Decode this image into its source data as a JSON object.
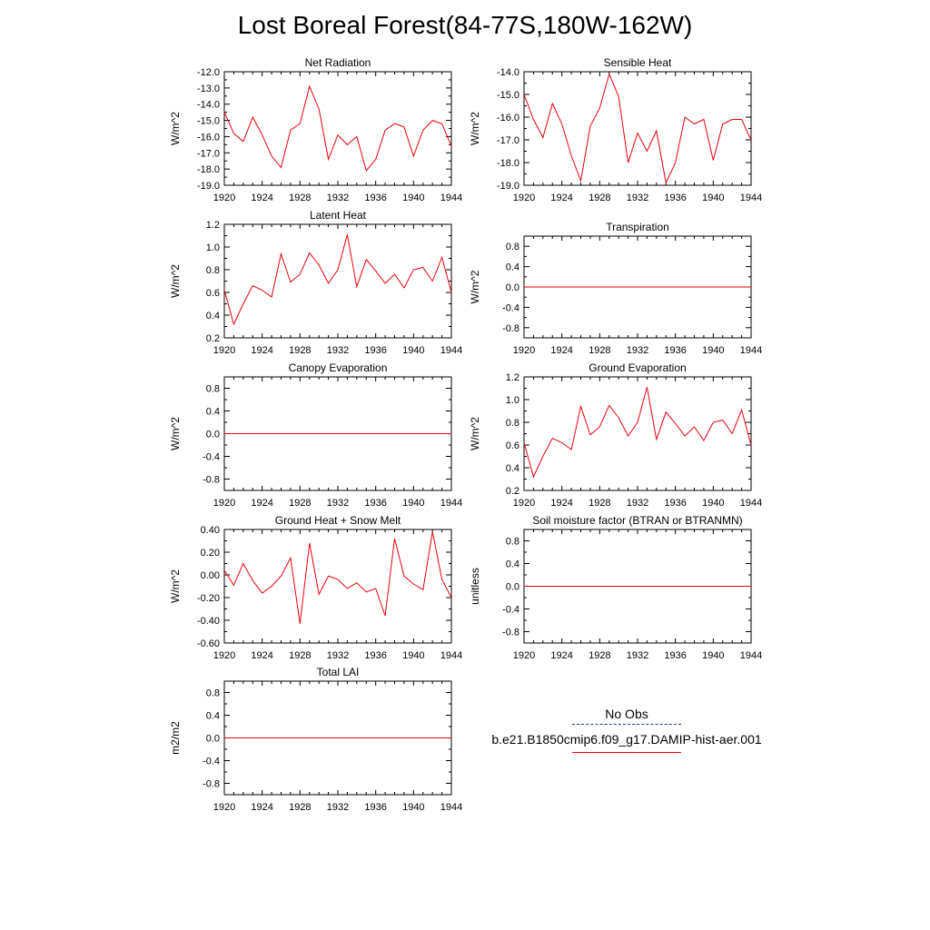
{
  "title": "Lost Boreal Forest(84-77S,180W-162W)",
  "legend": {
    "obs_label": "No Obs",
    "obs_color": "#1f2fb0",
    "run_label": "b.e21.B1850cmip6.f09_g17.DAMIP-hist-aer.001",
    "run_color": "#e8000b"
  },
  "chart_data": [
    {
      "type": "line",
      "title": "Net Radiation",
      "ylabel": "W/m^2",
      "xlim": [
        1920,
        1944
      ],
      "ylim": [
        -19.0,
        -12.0
      ],
      "xticks": [
        "1920",
        "1924",
        "1928",
        "1932",
        "1936",
        "1940",
        "1944"
      ],
      "yticks": [
        "-12.0",
        "-13.0",
        "-14.0",
        "-15.0",
        "-16.0",
        "-17.0",
        "-18.0",
        "-19.0"
      ],
      "x": [
        1920,
        1921,
        1922,
        1923,
        1924,
        1925,
        1926,
        1927,
        1928,
        1929,
        1930,
        1931,
        1932,
        1933,
        1934,
        1935,
        1936,
        1937,
        1938,
        1939,
        1940,
        1941,
        1942,
        1943,
        1944
      ],
      "values": [
        -14.5,
        -15.8,
        -16.3,
        -14.8,
        -15.9,
        -17.2,
        -17.9,
        -15.6,
        -15.2,
        -12.9,
        -14.3,
        -17.4,
        -15.9,
        -16.5,
        -16.0,
        -18.1,
        -17.4,
        -15.6,
        -15.2,
        -15.4,
        -17.2,
        -15.6,
        -15.0,
        -15.2,
        -16.6
      ]
    },
    {
      "type": "line",
      "title": "Sensible Heat",
      "ylabel": "W/m^2",
      "xlim": [
        1920,
        1944
      ],
      "ylim": [
        -19.0,
        -14.0
      ],
      "xticks": [
        "1920",
        "1924",
        "1928",
        "1932",
        "1936",
        "1940",
        "1944"
      ],
      "yticks": [
        "-14.0",
        "-15.0",
        "-16.0",
        "-17.0",
        "-18.0",
        "-19.0"
      ],
      "x": [
        1920,
        1921,
        1922,
        1923,
        1924,
        1925,
        1926,
        1927,
        1928,
        1929,
        1930,
        1931,
        1932,
        1933,
        1934,
        1935,
        1936,
        1937,
        1938,
        1939,
        1940,
        1941,
        1942,
        1943,
        1944
      ],
      "values": [
        -15.0,
        -16.1,
        -16.9,
        -15.4,
        -16.3,
        -17.7,
        -18.8,
        -16.4,
        -15.6,
        -14.1,
        -15.1,
        -18.0,
        -16.7,
        -17.5,
        -16.6,
        -18.9,
        -18.0,
        -16.0,
        -16.3,
        -16.1,
        -17.9,
        -16.3,
        -16.1,
        -16.1,
        -17.0
      ]
    },
    {
      "type": "line",
      "title": "Latent Heat",
      "ylabel": "W/m^2",
      "xlim": [
        1920,
        1944
      ],
      "ylim": [
        0.2,
        1.2
      ],
      "xticks": [
        "1920",
        "1924",
        "1928",
        "1932",
        "1936",
        "1940",
        "1944"
      ],
      "yticks": [
        "1.2",
        "1.0",
        "0.8",
        "0.6",
        "0.4",
        "0.2"
      ],
      "x": [
        1920,
        1921,
        1922,
        1923,
        1924,
        1925,
        1926,
        1927,
        1928,
        1929,
        1930,
        1931,
        1932,
        1933,
        1934,
        1935,
        1936,
        1937,
        1938,
        1939,
        1940,
        1941,
        1942,
        1943,
        1944
      ],
      "values": [
        0.62,
        0.32,
        0.5,
        0.66,
        0.62,
        0.56,
        0.94,
        0.69,
        0.76,
        0.95,
        0.84,
        0.68,
        0.8,
        1.11,
        0.65,
        0.89,
        0.79,
        0.68,
        0.76,
        0.64,
        0.8,
        0.82,
        0.7,
        0.91,
        0.6
      ]
    },
    {
      "type": "line",
      "title": "Transpiration",
      "ylabel": "W/m^2",
      "xlim": [
        1920,
        1944
      ],
      "ylim": [
        -1.0,
        1.0
      ],
      "xticks": [
        "1920",
        "1924",
        "1928",
        "1932",
        "1936",
        "1940",
        "1944"
      ],
      "yticks": [
        "0.8",
        "0.4",
        "0.0",
        "-0.4",
        "-0.8"
      ],
      "x": [
        1920,
        1944
      ],
      "values": [
        0.0,
        0.0
      ]
    },
    {
      "type": "line",
      "title": "Canopy Evaporation",
      "ylabel": "W/m^2",
      "xlim": [
        1920,
        1944
      ],
      "ylim": [
        -1.0,
        1.0
      ],
      "xticks": [
        "1920",
        "1924",
        "1928",
        "1932",
        "1936",
        "1940",
        "1944"
      ],
      "yticks": [
        "0.8",
        "0.4",
        "0.0",
        "-0.4",
        "-0.8"
      ],
      "x": [
        1920,
        1944
      ],
      "values": [
        0.0,
        0.0
      ]
    },
    {
      "type": "line",
      "title": "Ground Evaporation",
      "ylabel": "W/m^2",
      "xlim": [
        1920,
        1944
      ],
      "ylim": [
        0.2,
        1.2
      ],
      "xticks": [
        "1920",
        "1924",
        "1928",
        "1932",
        "1936",
        "1940",
        "1944"
      ],
      "yticks": [
        "1.2",
        "1.0",
        "0.8",
        "0.6",
        "0.4",
        "0.2"
      ],
      "x": [
        1920,
        1921,
        1922,
        1923,
        1924,
        1925,
        1926,
        1927,
        1928,
        1929,
        1930,
        1931,
        1932,
        1933,
        1934,
        1935,
        1936,
        1937,
        1938,
        1939,
        1940,
        1941,
        1942,
        1943,
        1944
      ],
      "values": [
        0.62,
        0.32,
        0.5,
        0.66,
        0.62,
        0.56,
        0.94,
        0.69,
        0.76,
        0.95,
        0.84,
        0.68,
        0.8,
        1.11,
        0.65,
        0.89,
        0.79,
        0.68,
        0.76,
        0.64,
        0.8,
        0.82,
        0.7,
        0.91,
        0.6
      ]
    },
    {
      "type": "line",
      "title": "Ground Heat + Snow Melt",
      "ylabel": "W/m^2",
      "xlim": [
        1920,
        1944
      ],
      "ylim": [
        -0.6,
        0.4
      ],
      "xticks": [
        "1920",
        "1924",
        "1928",
        "1932",
        "1936",
        "1940",
        "1944"
      ],
      "yticks": [
        "0.40",
        "0.20",
        "0.00",
        "-0.20",
        "-0.40",
        "-0.60"
      ],
      "x": [
        1920,
        1921,
        1922,
        1923,
        1924,
        1925,
        1926,
        1927,
        1928,
        1929,
        1930,
        1931,
        1932,
        1933,
        1934,
        1935,
        1936,
        1937,
        1938,
        1939,
        1940,
        1941,
        1942,
        1943,
        1944
      ],
      "values": [
        0.04,
        -0.09,
        0.1,
        -0.05,
        -0.16,
        -0.1,
        -0.01,
        0.15,
        -0.43,
        0.28,
        -0.17,
        -0.01,
        -0.04,
        -0.12,
        -0.07,
        -0.15,
        -0.12,
        -0.36,
        0.32,
        -0.01,
        -0.08,
        -0.13,
        0.38,
        -0.04,
        -0.2
      ]
    },
    {
      "type": "line",
      "title": "Soil moisture factor (BTRAN or BTRANMN)",
      "ylabel": "unitless",
      "xlim": [
        1920,
        1944
      ],
      "ylim": [
        -1.0,
        1.0
      ],
      "xticks": [
        "1920",
        "1924",
        "1928",
        "1932",
        "1936",
        "1940",
        "1944"
      ],
      "yticks": [
        "0.8",
        "0.4",
        "0.0",
        "-0.4",
        "-0.8"
      ],
      "x": [
        1920,
        1944
      ],
      "values": [
        0.0,
        0.0
      ]
    },
    {
      "type": "line",
      "title": "Total LAI",
      "ylabel": "m2/m2",
      "xlim": [
        1920,
        1944
      ],
      "ylim": [
        -1.0,
        1.0
      ],
      "xticks": [
        "1920",
        "1924",
        "1928",
        "1932",
        "1936",
        "1940",
        "1944"
      ],
      "yticks": [
        "0.8",
        "0.4",
        "0.0",
        "-0.4",
        "-0.8"
      ],
      "x": [
        1920,
        1944
      ],
      "values": [
        0.0,
        0.0
      ]
    }
  ]
}
